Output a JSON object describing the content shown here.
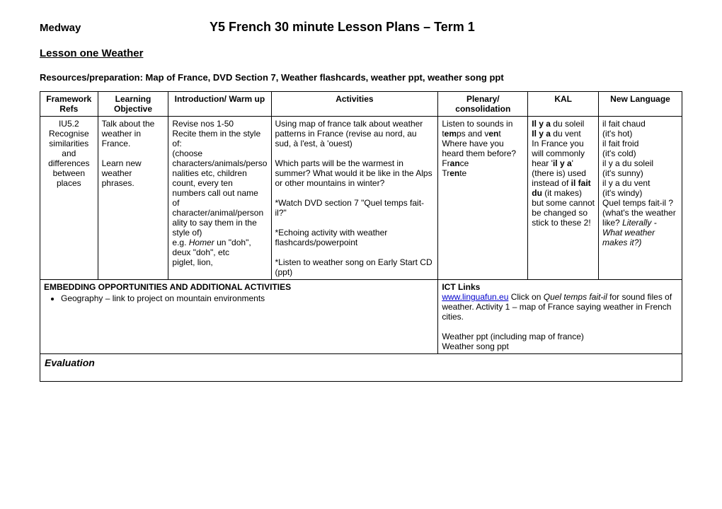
{
  "header": {
    "org": "Medway",
    "main_title": "Y5 French 30 minute Lesson Plans – Term 1",
    "lesson_line": "Lesson one   Weather",
    "resources_label": "Resources/preparation:   Map of France, DVD Section 7, Weather flashcards, weather ppt, weather song ppt"
  },
  "table": {
    "headers": {
      "framework": "Framework Refs",
      "objective": "Learning Objective",
      "intro": "Introduction/ Warm up",
      "activities": "Activities",
      "plenary": "Plenary/ consolidation",
      "kal": "KAL",
      "language": "New Language"
    },
    "row": {
      "framework": "IU5.2 Recognise similarities and differences between places",
      "objective_p1": "Talk about the weather in France.",
      "objective_p2": "Learn new weather phrases.",
      "intro_html": "Revise nos 1-50<br>Recite them in the style of:<br>(choose characters/animals/personalities etc, children count, every ten numbers call out name of character/animal/personality to say them in the style of)<br>e.g. <i>Homer</i> un \"doh\", deux \"doh\", etc<br>piglet, lion,",
      "activities_html": "Using map of france talk about weather patterns in France (revise au nord, au sud, à l'est, à 'ouest)<br><br>Which parts will be the warmest in summer? What would it be like in the Alps or other mountains in winter?<br><br>*Watch DVD section 7 \"Quel temps fait-il?\"<br><br>*Echoing activity with weather flashcards/powerpoint<br><br>*Listen to weather song on Early Start CD (ppt)",
      "plenary_html": "Listen to sounds in t<b>em</b>ps and v<b>en</b>t<br>Where have you heard them before?<br>Fr<b>an</b>ce<br>Tr<b>en</b>te",
      "kal_html": "<b>Il y a</b> du soleil<br><b>Il y a</b> du vent<br>In France you will commonly hear '<b>il y a</b>' (there is) used instead of <b>il fait du</b> (it makes) but some cannot be changed so stick to these 2!",
      "language_html": "il fait chaud<br>(it's hot)<br>il fait froid<br>(it's cold)<br>il y a du soleil<br>(it's sunny)<br>il y a du vent<br>(it's windy)<br>Quel temps fait-il ?<br>(what's the weather like? <i>Literally - What weather makes it?)</i>"
    },
    "embedding": {
      "title": "EMBEDDING OPPORTUNITIES AND ADDITIONAL ACTIVITIES",
      "bullet": "Geography – link to project on mountain environments"
    },
    "ict": {
      "title": "ICT Links",
      "link_text": "www.linguafun.eu",
      "link_href": "http://www.linguafun.eu",
      "after_link": " Click on ",
      "italic": "Quel temps fait-il ",
      "rest": " for sound files of weather.  Activity 1 – map of France saying weather in French cities.",
      "p2": "Weather ppt (including map of france)",
      "p3": "Weather song ppt"
    },
    "evaluation": "Evaluation"
  }
}
